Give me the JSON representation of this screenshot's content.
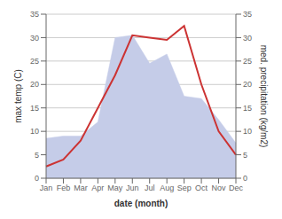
{
  "chart_data": {
    "type": "line",
    "categories": [
      "Jan",
      "Feb",
      "Mar",
      "Apr",
      "May",
      "Jun",
      "Jul",
      "Aug",
      "Sep",
      "Oct",
      "Nov",
      "Dec"
    ],
    "series": [
      {
        "type": "area",
        "axis": "y2",
        "color": "#c5cce8",
        "values": [
          8.5,
          9.0,
          9.0,
          12.0,
          30.0,
          30.5,
          24.5,
          26.5,
          17.5,
          17.0,
          12.5,
          7.5
        ]
      },
      {
        "type": "line",
        "color": "#cc3333",
        "values": [
          2.5,
          4.0,
          8.0,
          15.0,
          22.0,
          30.5,
          30.0,
          29.5,
          32.5,
          20.0,
          10.0,
          5.0
        ]
      }
    ],
    "xlabel": "date (month)",
    "ylabel": "max temp (C)",
    "y2label": "med. precipitation (kg/m2)",
    "ylim": [
      0,
      35
    ],
    "yticks": [
      0,
      5,
      10,
      15,
      20,
      25,
      30,
      35
    ],
    "y2lim": [
      0,
      35
    ],
    "y2ticks": [
      0,
      5,
      10,
      15,
      20,
      25,
      30,
      35
    ],
    "grid": "y"
  }
}
